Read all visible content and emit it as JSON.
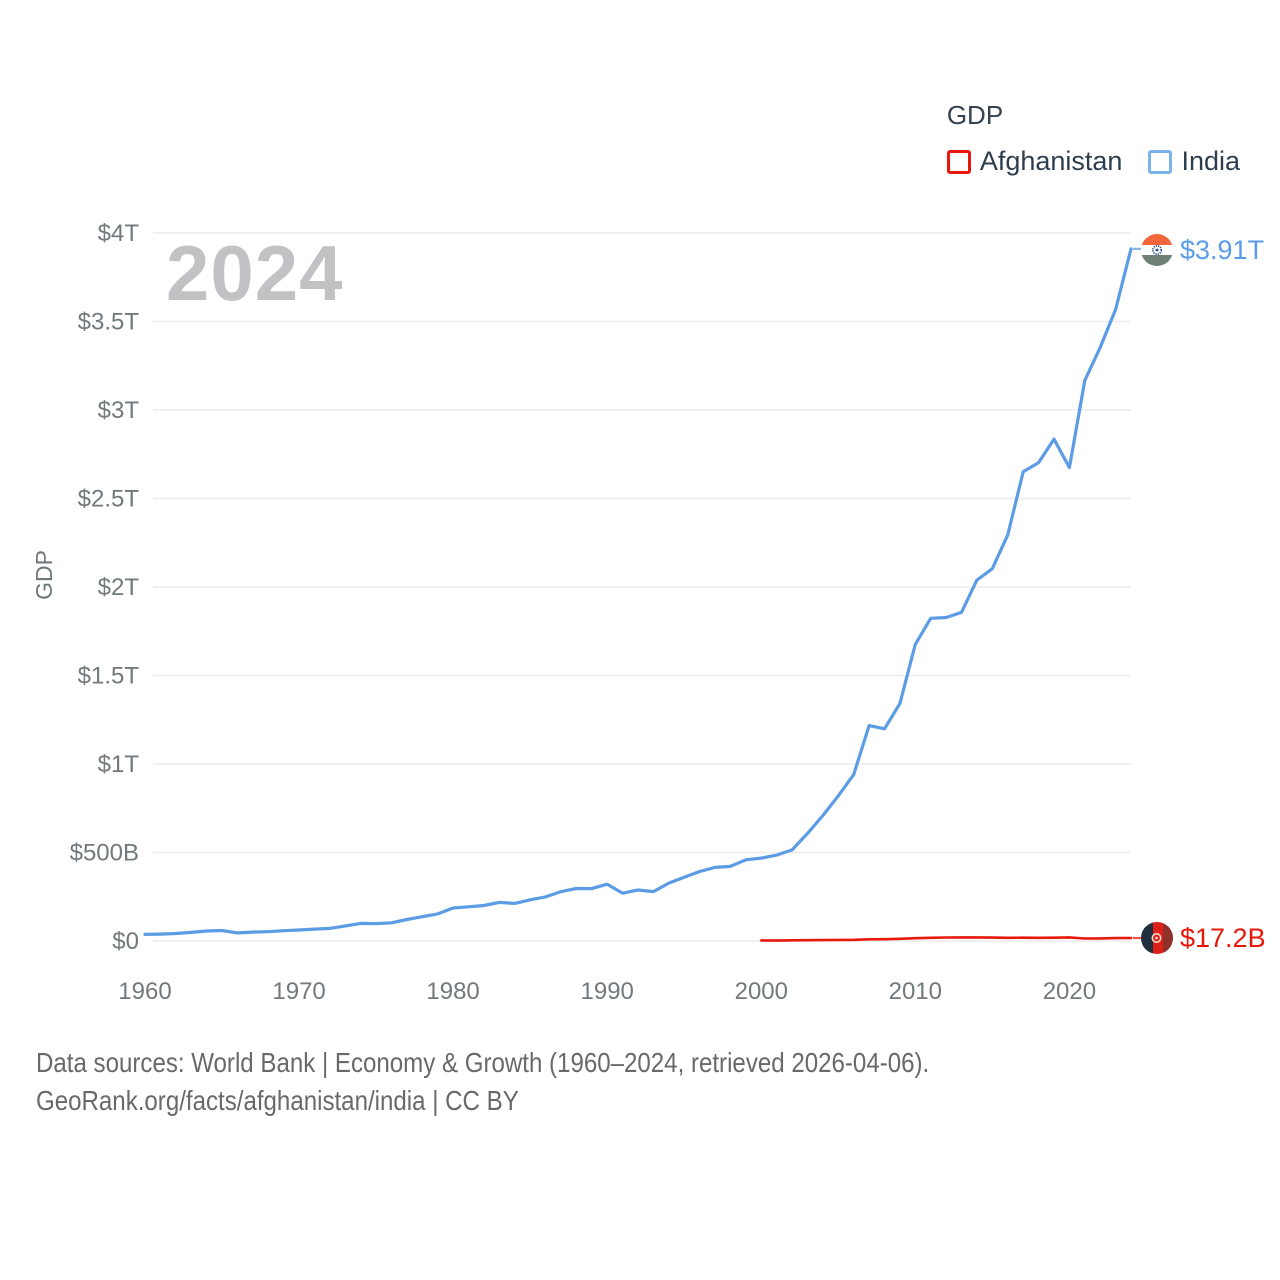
{
  "legend": {
    "title": "GDP",
    "items": [
      {
        "id": "afghanistan",
        "label": "Afghanistan",
        "swatch_color": "#e8170b"
      },
      {
        "id": "india",
        "label": "India",
        "swatch_color": "#7ab2ea"
      }
    ]
  },
  "watermark_year": "2024",
  "y_axis_title": "GDP",
  "end_labels": {
    "india": {
      "value": "$3.91T",
      "color": "#5b9ce8",
      "flag_icon": "india-flag-icon"
    },
    "afghanistan": {
      "value": "$17.2B",
      "color": "#e8170b",
      "flag_icon": "afghanistan-flag-icon"
    }
  },
  "footer": {
    "line1": "Data sources: World Bank | Economy & Growth (1960–2024, retrieved 2026-04-06).",
    "line2": "GeoRank.org/facts/afghanistan/india | CC BY"
  },
  "chart_data": {
    "type": "line",
    "title": "GDP",
    "ylabel": "GDP",
    "grid": true,
    "legend_position": "top-right",
    "x_range": [
      1960,
      2024
    ],
    "ylim_billions": [
      0,
      4000
    ],
    "x_ticks": [
      1960,
      1970,
      1980,
      1990,
      2000,
      2010,
      2020
    ],
    "y_ticks": [
      {
        "label": "$0",
        "value": 0
      },
      {
        "label": "$500B",
        "value": 500
      },
      {
        "label": "$1T",
        "value": 1000
      },
      {
        "label": "$1.5T",
        "value": 1500
      },
      {
        "label": "$2T",
        "value": 2000
      },
      {
        "label": "$2.5T",
        "value": 2500
      },
      {
        "label": "$3T",
        "value": 3000
      },
      {
        "label": "$3.5T",
        "value": 3500
      },
      {
        "label": "$4T",
        "value": 4000
      }
    ],
    "grid_color": "#ececec",
    "series": [
      {
        "name": "India",
        "color": "#5b9ce4",
        "width": 3.2,
        "start_year": 1960,
        "end_label": "$3.91T",
        "values_billions_usd": [
          37.03,
          39.23,
          42.16,
          48.42,
          56.48,
          59.55,
          45.87,
          50.13,
          53.09,
          58.45,
          62.42,
          67.35,
          71.46,
          85.52,
          99.53,
          98.47,
          102.72,
          121.49,
          137.3,
          152.99,
          186.33,
          193.49,
          200.72,
          218.26,
          212.16,
          232.51,
          248.99,
          279.03,
          296.59,
          296.04,
          320.98,
          270.11,
          288.21,
          279.3,
          327.28,
          360.28,
          392.9,
          415.87,
          421.35,
          458.82,
          468.39,
          485.44,
          514.94,
          607.7,
          709.15,
          820.38,
          940.26,
          1216.74,
          1198.9,
          1341.89,
          1675.62,
          1823.05,
          1827.64,
          1856.72,
          2039.13,
          2103.59,
          2294.8,
          2651.47,
          2702.93,
          2835.61,
          2674.85,
          3167.27,
          3353.47,
          3567.55,
          3910.0
        ]
      },
      {
        "name": "Afghanistan",
        "color": "#e8190b",
        "width": 2.6,
        "start_year": 2000,
        "end_label": "$17.2B",
        "values_billions_usd": [
          3.53,
          2.46,
          4.06,
          4.52,
          5.23,
          6.21,
          6.97,
          9.75,
          10.11,
          12.44,
          15.86,
          17.8,
          20.0,
          20.56,
          20.48,
          19.13,
          18.02,
          18.87,
          18.35,
          18.9,
          20.14,
          14.27,
          14.5,
          16.62,
          17.23
        ]
      }
    ]
  }
}
